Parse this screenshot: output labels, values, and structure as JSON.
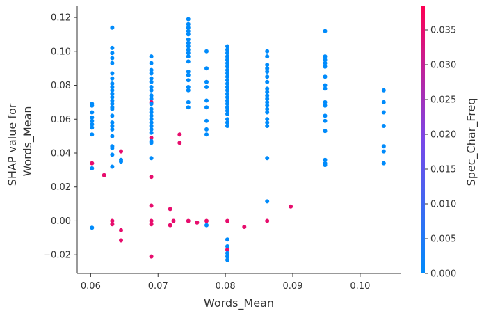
{
  "chart_data": {
    "type": "scatter",
    "xlabel": "Words_Mean",
    "ylabel": [
      "SHAP value for",
      "Words_Mean"
    ],
    "xlim": [
      0.058,
      0.106
    ],
    "ylim": [
      -0.031,
      0.127
    ],
    "x_ticks": [
      0.06,
      0.07,
      0.08,
      0.09,
      0.1
    ],
    "x_tick_labels": [
      "0.06",
      "0.07",
      "0.08",
      "0.09",
      "0.10"
    ],
    "y_ticks": [
      -0.02,
      0.0,
      0.02,
      0.04,
      0.06,
      0.08,
      0.1,
      0.12
    ],
    "y_tick_labels": [
      "−0.02",
      "0.00",
      "0.02",
      "0.04",
      "0.06",
      "0.08",
      "0.10",
      "0.12"
    ],
    "colorbar": {
      "label": "Spec_Char_Freq",
      "range": [
        0.0,
        0.0385
      ],
      "ticks": [
        0.0,
        0.005,
        0.01,
        0.015,
        0.02,
        0.025,
        0.03,
        0.035
      ],
      "tick_labels": [
        "0.000",
        "0.005",
        "0.010",
        "0.015",
        "0.020",
        "0.025",
        "0.030",
        "0.035"
      ],
      "low_color": "#008bfb",
      "high_color": "#ff0052"
    },
    "grid": false,
    "points": [
      {
        "x": 0.0602,
        "y": 0.069,
        "c": 0.0
      },
      {
        "x": 0.0602,
        "y": 0.068,
        "c": 0.0
      },
      {
        "x": 0.0602,
        "y": 0.064,
        "c": 0.0
      },
      {
        "x": 0.0602,
        "y": 0.061,
        "c": 0.0
      },
      {
        "x": 0.0602,
        "y": 0.059,
        "c": 0.0
      },
      {
        "x": 0.0602,
        "y": 0.057,
        "c": 0.0
      },
      {
        "x": 0.0602,
        "y": 0.055,
        "c": 0.0
      },
      {
        "x": 0.0602,
        "y": 0.051,
        "c": 0.0
      },
      {
        "x": 0.0602,
        "y": 0.034,
        "c": 0.035
      },
      {
        "x": 0.0602,
        "y": 0.031,
        "c": 0.0
      },
      {
        "x": 0.0602,
        "y": -0.004,
        "c": 0.0
      },
      {
        "x": 0.062,
        "y": 0.027,
        "c": 0.035
      },
      {
        "x": 0.0632,
        "y": 0.114,
        "c": 0.0
      },
      {
        "x": 0.0632,
        "y": 0.102,
        "c": 0.0
      },
      {
        "x": 0.0632,
        "y": 0.099,
        "c": 0.0
      },
      {
        "x": 0.0632,
        "y": 0.096,
        "c": 0.0
      },
      {
        "x": 0.0632,
        "y": 0.093,
        "c": 0.0
      },
      {
        "x": 0.0632,
        "y": 0.087,
        "c": 0.0
      },
      {
        "x": 0.0632,
        "y": 0.084,
        "c": 0.0
      },
      {
        "x": 0.0632,
        "y": 0.081,
        "c": 0.0
      },
      {
        "x": 0.0632,
        "y": 0.079,
        "c": 0.0
      },
      {
        "x": 0.0632,
        "y": 0.077,
        "c": 0.0
      },
      {
        "x": 0.0632,
        "y": 0.075,
        "c": 0.0
      },
      {
        "x": 0.0632,
        "y": 0.073,
        "c": 0.0
      },
      {
        "x": 0.0632,
        "y": 0.071,
        "c": 0.0
      },
      {
        "x": 0.0632,
        "y": 0.069,
        "c": 0.0
      },
      {
        "x": 0.0632,
        "y": 0.067,
        "c": 0.0
      },
      {
        "x": 0.0632,
        "y": 0.066,
        "c": 0.0
      },
      {
        "x": 0.0632,
        "y": 0.062,
        "c": 0.0
      },
      {
        "x": 0.0632,
        "y": 0.058,
        "c": 0.0
      },
      {
        "x": 0.0632,
        "y": 0.056,
        "c": 0.0
      },
      {
        "x": 0.0632,
        "y": 0.054,
        "c": 0.0
      },
      {
        "x": 0.0632,
        "y": 0.05,
        "c": 0.0
      },
      {
        "x": 0.0632,
        "y": 0.044,
        "c": 0.0
      },
      {
        "x": 0.0632,
        "y": 0.043,
        "c": 0.0
      },
      {
        "x": 0.0632,
        "y": 0.039,
        "c": 0.0
      },
      {
        "x": 0.0632,
        "y": 0.032,
        "c": 0.0
      },
      {
        "x": 0.0632,
        "y": 0.0,
        "c": 0.035
      },
      {
        "x": 0.0632,
        "y": -0.002,
        "c": 0.035
      },
      {
        "x": 0.0645,
        "y": 0.041,
        "c": 0.035
      },
      {
        "x": 0.0645,
        "y": 0.036,
        "c": 0.0
      },
      {
        "x": 0.0645,
        "y": 0.035,
        "c": 0.0
      },
      {
        "x": 0.0645,
        "y": -0.0055,
        "c": 0.035
      },
      {
        "x": 0.0645,
        "y": -0.0115,
        "c": 0.035
      },
      {
        "x": 0.069,
        "y": 0.097,
        "c": 0.0
      },
      {
        "x": 0.069,
        "y": 0.093,
        "c": 0.0
      },
      {
        "x": 0.069,
        "y": 0.089,
        "c": 0.0
      },
      {
        "x": 0.069,
        "y": 0.087,
        "c": 0.0
      },
      {
        "x": 0.069,
        "y": 0.084,
        "c": 0.0
      },
      {
        "x": 0.069,
        "y": 0.082,
        "c": 0.0
      },
      {
        "x": 0.069,
        "y": 0.079,
        "c": 0.0
      },
      {
        "x": 0.069,
        "y": 0.077,
        "c": 0.0
      },
      {
        "x": 0.069,
        "y": 0.074,
        "c": 0.0
      },
      {
        "x": 0.069,
        "y": 0.072,
        "c": 0.0
      },
      {
        "x": 0.069,
        "y": 0.07,
        "c": 0.035
      },
      {
        "x": 0.069,
        "y": 0.069,
        "c": 0.0
      },
      {
        "x": 0.069,
        "y": 0.066,
        "c": 0.0
      },
      {
        "x": 0.069,
        "y": 0.064,
        "c": 0.0
      },
      {
        "x": 0.069,
        "y": 0.062,
        "c": 0.0
      },
      {
        "x": 0.069,
        "y": 0.06,
        "c": 0.0
      },
      {
        "x": 0.069,
        "y": 0.058,
        "c": 0.0
      },
      {
        "x": 0.069,
        "y": 0.056,
        "c": 0.0
      },
      {
        "x": 0.069,
        "y": 0.054,
        "c": 0.0
      },
      {
        "x": 0.069,
        "y": 0.052,
        "c": 0.0
      },
      {
        "x": 0.069,
        "y": 0.049,
        "c": 0.035
      },
      {
        "x": 0.069,
        "y": 0.047,
        "c": 0.0
      },
      {
        "x": 0.069,
        "y": 0.046,
        "c": 0.0
      },
      {
        "x": 0.069,
        "y": 0.037,
        "c": 0.0
      },
      {
        "x": 0.069,
        "y": 0.026,
        "c": 0.035
      },
      {
        "x": 0.069,
        "y": 0.009,
        "c": 0.035
      },
      {
        "x": 0.069,
        "y": 0.0,
        "c": 0.035
      },
      {
        "x": 0.069,
        "y": -0.002,
        "c": 0.035
      },
      {
        "x": 0.069,
        "y": -0.021,
        "c": 0.035
      },
      {
        "x": 0.0718,
        "y": 0.007,
        "c": 0.035
      },
      {
        "x": 0.0718,
        "y": -0.0025,
        "c": 0.035
      },
      {
        "x": 0.0723,
        "y": 0.0,
        "c": 0.035
      },
      {
        "x": 0.0732,
        "y": 0.051,
        "c": 0.035
      },
      {
        "x": 0.0732,
        "y": 0.046,
        "c": 0.035
      },
      {
        "x": 0.0745,
        "y": 0.119,
        "c": 0.0
      },
      {
        "x": 0.0745,
        "y": 0.116,
        "c": 0.0
      },
      {
        "x": 0.0745,
        "y": 0.114,
        "c": 0.0
      },
      {
        "x": 0.0745,
        "y": 0.112,
        "c": 0.0
      },
      {
        "x": 0.0745,
        "y": 0.11,
        "c": 0.0
      },
      {
        "x": 0.0745,
        "y": 0.107,
        "c": 0.0
      },
      {
        "x": 0.0745,
        "y": 0.105,
        "c": 0.0
      },
      {
        "x": 0.0745,
        "y": 0.103,
        "c": 0.0
      },
      {
        "x": 0.0745,
        "y": 0.101,
        "c": 0.0
      },
      {
        "x": 0.0745,
        "y": 0.099,
        "c": 0.0
      },
      {
        "x": 0.0745,
        "y": 0.097,
        "c": 0.0
      },
      {
        "x": 0.0745,
        "y": 0.094,
        "c": 0.0
      },
      {
        "x": 0.0745,
        "y": 0.088,
        "c": 0.0
      },
      {
        "x": 0.0745,
        "y": 0.086,
        "c": 0.0
      },
      {
        "x": 0.0745,
        "y": 0.083,
        "c": 0.0
      },
      {
        "x": 0.0745,
        "y": 0.079,
        "c": 0.0
      },
      {
        "x": 0.0745,
        "y": 0.077,
        "c": 0.0
      },
      {
        "x": 0.0745,
        "y": 0.07,
        "c": 0.0
      },
      {
        "x": 0.0745,
        "y": 0.067,
        "c": 0.0
      },
      {
        "x": 0.0745,
        "y": 0.0,
        "c": 0.035
      },
      {
        "x": 0.0758,
        "y": -0.001,
        "c": 0.035
      },
      {
        "x": 0.0772,
        "y": 0.1,
        "c": 0.0
      },
      {
        "x": 0.0772,
        "y": 0.09,
        "c": 0.0
      },
      {
        "x": 0.0772,
        "y": 0.082,
        "c": 0.0
      },
      {
        "x": 0.0772,
        "y": 0.079,
        "c": 0.0
      },
      {
        "x": 0.0772,
        "y": 0.071,
        "c": 0.0
      },
      {
        "x": 0.0772,
        "y": 0.067,
        "c": 0.0
      },
      {
        "x": 0.0772,
        "y": 0.059,
        "c": 0.0
      },
      {
        "x": 0.0772,
        "y": 0.054,
        "c": 0.0
      },
      {
        "x": 0.0772,
        "y": 0.051,
        "c": 0.0
      },
      {
        "x": 0.0772,
        "y": 0.0,
        "c": 0.035
      },
      {
        "x": 0.0772,
        "y": -0.0025,
        "c": 0.0
      },
      {
        "x": 0.0803,
        "y": 0.103,
        "c": 0.0
      },
      {
        "x": 0.0803,
        "y": 0.101,
        "c": 0.0
      },
      {
        "x": 0.0803,
        "y": 0.099,
        "c": 0.0
      },
      {
        "x": 0.0803,
        "y": 0.097,
        "c": 0.0
      },
      {
        "x": 0.0803,
        "y": 0.095,
        "c": 0.0
      },
      {
        "x": 0.0803,
        "y": 0.093,
        "c": 0.0
      },
      {
        "x": 0.0803,
        "y": 0.091,
        "c": 0.0
      },
      {
        "x": 0.0803,
        "y": 0.089,
        "c": 0.0
      },
      {
        "x": 0.0803,
        "y": 0.087,
        "c": 0.0
      },
      {
        "x": 0.0803,
        "y": 0.085,
        "c": 0.0
      },
      {
        "x": 0.0803,
        "y": 0.083,
        "c": 0.0
      },
      {
        "x": 0.0803,
        "y": 0.081,
        "c": 0.0
      },
      {
        "x": 0.0803,
        "y": 0.079,
        "c": 0.0
      },
      {
        "x": 0.0803,
        "y": 0.077,
        "c": 0.0
      },
      {
        "x": 0.0803,
        "y": 0.075,
        "c": 0.0
      },
      {
        "x": 0.0803,
        "y": 0.073,
        "c": 0.0
      },
      {
        "x": 0.0803,
        "y": 0.071,
        "c": 0.0
      },
      {
        "x": 0.0803,
        "y": 0.069,
        "c": 0.0
      },
      {
        "x": 0.0803,
        "y": 0.067,
        "c": 0.0
      },
      {
        "x": 0.0803,
        "y": 0.065,
        "c": 0.0
      },
      {
        "x": 0.0803,
        "y": 0.063,
        "c": 0.0
      },
      {
        "x": 0.0803,
        "y": 0.06,
        "c": 0.0
      },
      {
        "x": 0.0803,
        "y": 0.058,
        "c": 0.0
      },
      {
        "x": 0.0803,
        "y": 0.056,
        "c": 0.0
      },
      {
        "x": 0.0803,
        "y": 0.0,
        "c": 0.035
      },
      {
        "x": 0.0803,
        "y": -0.011,
        "c": 0.0
      },
      {
        "x": 0.0803,
        "y": -0.015,
        "c": 0.0
      },
      {
        "x": 0.0803,
        "y": -0.017,
        "c": 0.035
      },
      {
        "x": 0.0803,
        "y": -0.019,
        "c": 0.0
      },
      {
        "x": 0.0803,
        "y": -0.021,
        "c": 0.0
      },
      {
        "x": 0.0803,
        "y": -0.023,
        "c": 0.0
      },
      {
        "x": 0.0828,
        "y": -0.0035,
        "c": 0.035
      },
      {
        "x": 0.0862,
        "y": 0.1,
        "c": 0.0
      },
      {
        "x": 0.0862,
        "y": 0.097,
        "c": 0.0
      },
      {
        "x": 0.0862,
        "y": 0.092,
        "c": 0.0
      },
      {
        "x": 0.0862,
        "y": 0.09,
        "c": 0.0
      },
      {
        "x": 0.0862,
        "y": 0.088,
        "c": 0.0
      },
      {
        "x": 0.0862,
        "y": 0.085,
        "c": 0.0
      },
      {
        "x": 0.0862,
        "y": 0.082,
        "c": 0.0
      },
      {
        "x": 0.0862,
        "y": 0.078,
        "c": 0.0
      },
      {
        "x": 0.0862,
        "y": 0.076,
        "c": 0.0
      },
      {
        "x": 0.0862,
        "y": 0.074,
        "c": 0.0
      },
      {
        "x": 0.0862,
        "y": 0.072,
        "c": 0.0
      },
      {
        "x": 0.0862,
        "y": 0.07,
        "c": 0.0
      },
      {
        "x": 0.0862,
        "y": 0.068,
        "c": 0.0
      },
      {
        "x": 0.0862,
        "y": 0.066,
        "c": 0.0
      },
      {
        "x": 0.0862,
        "y": 0.064,
        "c": 0.0
      },
      {
        "x": 0.0862,
        "y": 0.06,
        "c": 0.0
      },
      {
        "x": 0.0862,
        "y": 0.058,
        "c": 0.0
      },
      {
        "x": 0.0862,
        "y": 0.056,
        "c": 0.0
      },
      {
        "x": 0.0862,
        "y": 0.037,
        "c": 0.0
      },
      {
        "x": 0.0862,
        "y": 0.0115,
        "c": 0.0
      },
      {
        "x": 0.0862,
        "y": 0.0,
        "c": 0.035
      },
      {
        "x": 0.0897,
        "y": 0.0085,
        "c": 0.035
      },
      {
        "x": 0.0948,
        "y": 0.112,
        "c": 0.0
      },
      {
        "x": 0.0948,
        "y": 0.097,
        "c": 0.0
      },
      {
        "x": 0.0948,
        "y": 0.095,
        "c": 0.0
      },
      {
        "x": 0.0948,
        "y": 0.093,
        "c": 0.0
      },
      {
        "x": 0.0948,
        "y": 0.091,
        "c": 0.0
      },
      {
        "x": 0.0948,
        "y": 0.085,
        "c": 0.0
      },
      {
        "x": 0.0948,
        "y": 0.08,
        "c": 0.0
      },
      {
        "x": 0.0948,
        "y": 0.078,
        "c": 0.0
      },
      {
        "x": 0.0948,
        "y": 0.07,
        "c": 0.0
      },
      {
        "x": 0.0948,
        "y": 0.068,
        "c": 0.0
      },
      {
        "x": 0.0948,
        "y": 0.062,
        "c": 0.0
      },
      {
        "x": 0.0948,
        "y": 0.059,
        "c": 0.0
      },
      {
        "x": 0.0948,
        "y": 0.053,
        "c": 0.0
      },
      {
        "x": 0.0948,
        "y": 0.036,
        "c": 0.0
      },
      {
        "x": 0.0948,
        "y": 0.034,
        "c": 0.0
      },
      {
        "x": 0.0948,
        "y": 0.033,
        "c": 0.0
      },
      {
        "x": 0.1035,
        "y": 0.077,
        "c": 0.0
      },
      {
        "x": 0.1035,
        "y": 0.07,
        "c": 0.0
      },
      {
        "x": 0.1035,
        "y": 0.064,
        "c": 0.0
      },
      {
        "x": 0.1035,
        "y": 0.056,
        "c": 0.0
      },
      {
        "x": 0.1035,
        "y": 0.044,
        "c": 0.0
      },
      {
        "x": 0.1035,
        "y": 0.041,
        "c": 0.0
      },
      {
        "x": 0.1035,
        "y": 0.034,
        "c": 0.0
      }
    ]
  }
}
